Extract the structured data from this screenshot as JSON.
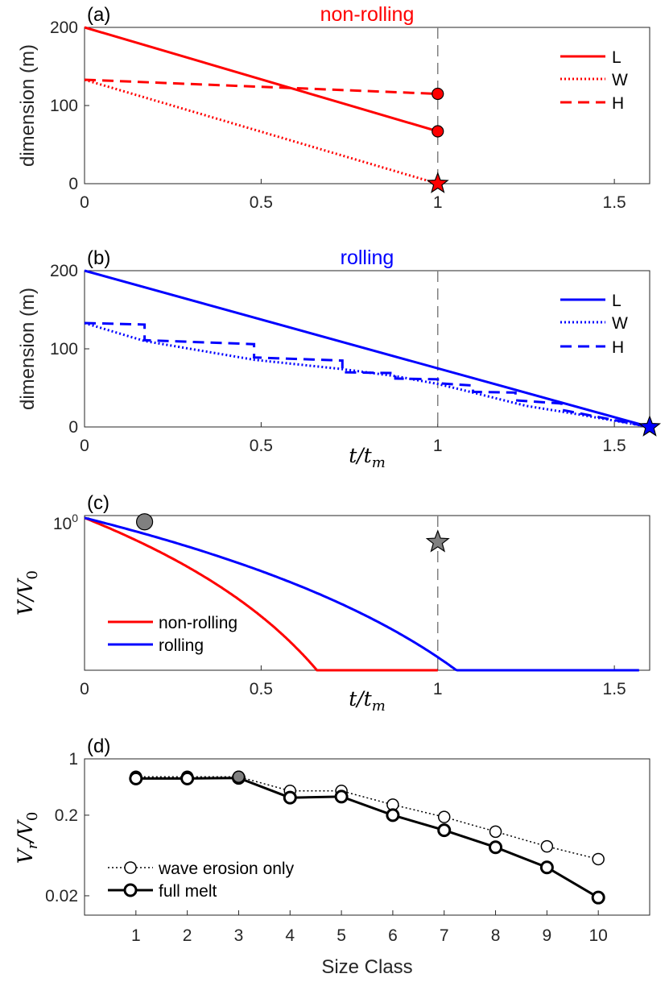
{
  "chart_data": [
    {
      "panel": "(a)",
      "type": "line",
      "title": "non-rolling",
      "title_color": "#ff0000",
      "ylabel": "dimension (m)",
      "xlim": [
        0,
        1.6
      ],
      "ylim": [
        0,
        200
      ],
      "xticks": [
        0,
        0.5,
        1,
        1.5
      ],
      "xtick_labels": [
        "0",
        "0.5",
        "1",
        "1.5"
      ],
      "yticks": [
        0,
        100,
        200
      ],
      "ytick_labels": [
        "0",
        "100",
        "200"
      ],
      "vline_x": 1,
      "legend_position": "top-right",
      "series": [
        {
          "name": "L",
          "color": "#ff0000",
          "style": "solid",
          "x": [
            0,
            1
          ],
          "y": [
            200,
            67
          ]
        },
        {
          "name": "W",
          "color": "#ff0000",
          "style": "dotted",
          "x": [
            0,
            1
          ],
          "y": [
            133,
            0
          ]
        },
        {
          "name": "H",
          "color": "#ff0000",
          "style": "dashed",
          "x": [
            0,
            1
          ],
          "y": [
            133,
            115
          ]
        }
      ],
      "markers": [
        {
          "type": "circle",
          "x": 1,
          "y": 115,
          "color": "#ff0000"
        },
        {
          "type": "circle",
          "x": 1,
          "y": 67,
          "color": "#ff0000"
        },
        {
          "type": "star",
          "x": 1,
          "y": 0,
          "color": "#ff0000"
        }
      ]
    },
    {
      "panel": "(b)",
      "type": "line",
      "title": "rolling",
      "title_color": "#0000ff",
      "ylabel": "dimension (m)",
      "xlabel": "t/t_m",
      "xlim": [
        0,
        1.6
      ],
      "ylim": [
        0,
        200
      ],
      "xticks": [
        0,
        0.5,
        1,
        1.5
      ],
      "xtick_labels": [
        "0",
        "0.5",
        "1",
        "1.5"
      ],
      "yticks": [
        0,
        100,
        200
      ],
      "ytick_labels": [
        "0",
        "100",
        "200"
      ],
      "vline_x": 1,
      "legend_position": "top-right",
      "series": [
        {
          "name": "L",
          "color": "#0000ff",
          "style": "solid",
          "x": [
            0,
            1.6
          ],
          "y": [
            200,
            0
          ]
        },
        {
          "name": "W",
          "color": "#0000ff",
          "style": "dotted",
          "x": [
            0,
            0.17,
            0.48,
            0.73,
            0.88,
            1.0,
            1.1,
            1.25,
            1.4,
            1.6
          ],
          "y": [
            133,
            110,
            86,
            74,
            65,
            55,
            44,
            27,
            16,
            0
          ]
        },
        {
          "name": "H",
          "color": "#0000ff",
          "style": "dashed",
          "x": [
            0,
            0.17,
            0.17,
            0.48,
            0.48,
            0.73,
            0.73,
            0.88,
            0.88,
            1.0,
            1.0,
            1.1,
            1.1,
            1.22,
            1.22,
            1.35,
            1.35,
            1.6
          ],
          "y": [
            133,
            131,
            111,
            106,
            89,
            85,
            70,
            69,
            62,
            61,
            56,
            53,
            45,
            44,
            34,
            30,
            22,
            0
          ]
        }
      ],
      "markers": [
        {
          "type": "star",
          "x": 1.6,
          "y": 0,
          "color": "#0000ff"
        }
      ]
    },
    {
      "panel": "(c)",
      "type": "line",
      "ylabel": "V/V_0",
      "xlabel": "t/t_m",
      "xlim": [
        0,
        1.6
      ],
      "yscale": "log",
      "ylim": [
        0.04,
        1.05
      ],
      "xticks": [
        0,
        0.5,
        1,
        1.5
      ],
      "xtick_labels": [
        "0",
        "0.5",
        "1",
        "1.5"
      ],
      "ytick_label": "10^0",
      "vline_x": 1,
      "legend_position": "bottom-left",
      "series": [
        {
          "name": "non-rolling",
          "color": "#ff0000",
          "style": "solid",
          "formula": "(1 - t)^3",
          "domain": [
            0,
            1
          ]
        },
        {
          "name": "rolling",
          "color": "#0000ff",
          "style": "solid",
          "formula": "(1 - t/1.6)^3",
          "domain": [
            0,
            1.57
          ]
        }
      ],
      "markers": [
        {
          "type": "circle",
          "x": 0.17,
          "y": 0.92,
          "color": "#808080"
        },
        {
          "type": "star",
          "x": 1.0,
          "y": 0.6,
          "color": "#808080"
        }
      ]
    },
    {
      "panel": "(d)",
      "type": "line",
      "ylabel": "V_r/V_0",
      "xlabel": "Size Class",
      "yscale": "log",
      "xlim": [
        0,
        11
      ],
      "ylim": [
        0.0115,
        1.0
      ],
      "categories": [
        1,
        2,
        3,
        4,
        5,
        6,
        7,
        8,
        9,
        10
      ],
      "yticks": [
        1,
        0.2,
        0.02
      ],
      "ytick_labels": [
        "1",
        "0.2",
        "0.02"
      ],
      "legend_position": "bottom-left",
      "series": [
        {
          "name": "wave erosion only",
          "color": "#000000",
          "style": "dotted",
          "marker": "open-circle",
          "values": [
            0.6,
            0.6,
            0.6,
            0.4,
            0.4,
            0.27,
            0.19,
            0.125,
            0.082,
            0.057
          ]
        },
        {
          "name": "full melt",
          "color": "#000000",
          "style": "solid-thick",
          "marker": "open-circle",
          "values": [
            0.57,
            0.57,
            0.58,
            0.33,
            0.34,
            0.2,
            0.13,
            0.08,
            0.045,
            0.019
          ]
        }
      ],
      "filled_markers": [
        {
          "x": 3,
          "y": 0.6,
          "color": "#808080"
        }
      ]
    }
  ]
}
